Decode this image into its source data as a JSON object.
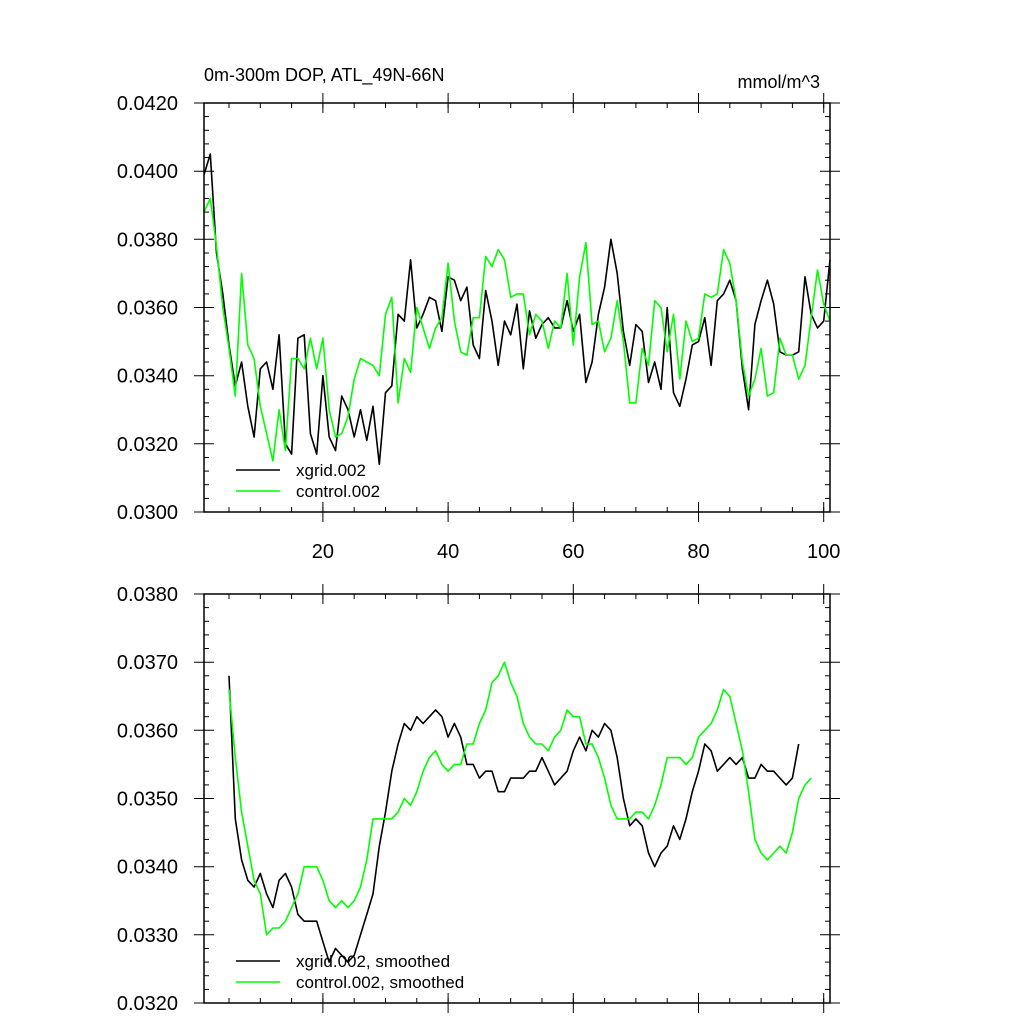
{
  "chart_data": [
    {
      "type": "line",
      "title": "0m-300m DOP, ATL_49N-66N",
      "units": "mmol/m^3",
      "xlabel": "",
      "ylabel": "",
      "xlim": [
        1,
        101
      ],
      "ylim": [
        0.03,
        0.042
      ],
      "x_ticks": [
        "20",
        "40",
        "60",
        "80",
        "100"
      ],
      "y_ticks": [
        "0.0300",
        "0.0320",
        "0.0340",
        "0.0360",
        "0.0380",
        "0.0400",
        "0.0420"
      ],
      "legend_position": "bottom-left",
      "x_start": 1,
      "series": [
        {
          "name": "xgrid.002",
          "color": "#000000",
          "values": [
            0.0399,
            0.0405,
            0.0376,
            0.0364,
            0.0349,
            0.0337,
            0.0344,
            0.0331,
            0.0322,
            0.0342,
            0.0344,
            0.0336,
            0.0352,
            0.032,
            0.0317,
            0.0351,
            0.0352,
            0.0323,
            0.0317,
            0.034,
            0.0322,
            0.0318,
            0.0334,
            0.033,
            0.0322,
            0.033,
            0.0321,
            0.0331,
            0.0314,
            0.0335,
            0.0337,
            0.0358,
            0.0356,
            0.0374,
            0.0354,
            0.0358,
            0.0363,
            0.0362,
            0.0353,
            0.0369,
            0.0368,
            0.0362,
            0.0366,
            0.0349,
            0.0345,
            0.0365,
            0.0356,
            0.0343,
            0.0356,
            0.0352,
            0.0361,
            0.0342,
            0.0359,
            0.0351,
            0.0355,
            0.0357,
            0.0354,
            0.0354,
            0.0362,
            0.0353,
            0.0358,
            0.0338,
            0.0344,
            0.0358,
            0.0366,
            0.038,
            0.037,
            0.0353,
            0.0343,
            0.0355,
            0.0353,
            0.0338,
            0.0344,
            0.0336,
            0.036,
            0.0335,
            0.0331,
            0.0339,
            0.0349,
            0.035,
            0.0357,
            0.0343,
            0.0362,
            0.0364,
            0.0368,
            0.0362,
            0.0342,
            0.033,
            0.0355,
            0.0362,
            0.0368,
            0.0361,
            0.0347,
            0.0346,
            0.0346,
            0.0347,
            0.0369,
            0.0358,
            0.0354,
            0.0356,
            0.0374
          ]
        },
        {
          "name": "control.002",
          "color": "#00ff00",
          "values": [
            0.0388,
            0.0392,
            0.0378,
            0.036,
            0.0348,
            0.0334,
            0.037,
            0.0349,
            0.0345,
            0.0331,
            0.0323,
            0.0315,
            0.033,
            0.0318,
            0.0345,
            0.0345,
            0.0342,
            0.0351,
            0.0342,
            0.0351,
            0.033,
            0.0322,
            0.0323,
            0.0328,
            0.0339,
            0.0345,
            0.0344,
            0.0343,
            0.034,
            0.0358,
            0.0363,
            0.0332,
            0.0345,
            0.0341,
            0.036,
            0.0354,
            0.0348,
            0.0354,
            0.0357,
            0.0373,
            0.0356,
            0.0347,
            0.0346,
            0.0357,
            0.0357,
            0.0375,
            0.0372,
            0.0377,
            0.0374,
            0.0363,
            0.0364,
            0.0364,
            0.0352,
            0.0358,
            0.0356,
            0.0348,
            0.0356,
            0.0354,
            0.037,
            0.0349,
            0.0369,
            0.0379,
            0.0355,
            0.0356,
            0.0347,
            0.0351,
            0.0362,
            0.035,
            0.0332,
            0.0332,
            0.0348,
            0.0343,
            0.0362,
            0.036,
            0.0347,
            0.0358,
            0.0339,
            0.0356,
            0.035,
            0.0351,
            0.0364,
            0.0363,
            0.0364,
            0.0377,
            0.0373,
            0.0362,
            0.0344,
            0.0334,
            0.0339,
            0.0348,
            0.0334,
            0.0335,
            0.0351,
            0.0346,
            0.0346,
            0.0339,
            0.0343,
            0.0357,
            0.0371,
            0.0361,
            0.0356
          ]
        }
      ]
    },
    {
      "type": "line",
      "title": "",
      "xlabel": "",
      "ylabel": "",
      "xlim": [
        1,
        101
      ],
      "ylim": [
        0.032,
        0.038
      ],
      "x_ticks": [],
      "y_ticks": [
        "0.0320",
        "0.0330",
        "0.0340",
        "0.0350",
        "0.0360",
        "0.0370",
        "0.0380"
      ],
      "legend_position": "bottom-left",
      "x_start": 5,
      "series": [
        {
          "name": "xgrid.002, smoothed",
          "color": "#000000",
          "values": [
            0.0368,
            0.0347,
            0.0341,
            0.0338,
            0.0337,
            0.0339,
            0.0336,
            0.0334,
            0.0338,
            0.0339,
            0.0337,
            0.0333,
            0.0332,
            0.0332,
            0.0332,
            0.0329,
            0.0326,
            0.0328,
            0.0327,
            0.0326,
            0.0327,
            0.033,
            0.0333,
            0.0336,
            0.0343,
            0.0348,
            0.0354,
            0.0358,
            0.0361,
            0.036,
            0.0362,
            0.0361,
            0.0362,
            0.0363,
            0.0362,
            0.0359,
            0.0361,
            0.0359,
            0.0355,
            0.0355,
            0.0353,
            0.0354,
            0.0354,
            0.0351,
            0.0351,
            0.0353,
            0.0353,
            0.0353,
            0.0354,
            0.0354,
            0.0356,
            0.0354,
            0.0352,
            0.0353,
            0.0354,
            0.0357,
            0.0359,
            0.0357,
            0.036,
            0.0359,
            0.0361,
            0.036,
            0.0356,
            0.035,
            0.0346,
            0.0347,
            0.0346,
            0.0342,
            0.034,
            0.0342,
            0.0343,
            0.0346,
            0.0344,
            0.0347,
            0.0351,
            0.0354,
            0.0358,
            0.0357,
            0.0354,
            0.0355,
            0.0356,
            0.0355,
            0.0356,
            0.0353,
            0.0353,
            0.0355,
            0.0354,
            0.0354,
            0.0353,
            0.0352,
            0.0353,
            0.0358
          ]
        },
        {
          "name": "control.002, smoothed",
          "color": "#00ff00",
          "values": [
            0.0366,
            0.0356,
            0.0348,
            0.0343,
            0.0338,
            0.0336,
            0.033,
            0.0331,
            0.0331,
            0.0332,
            0.0334,
            0.0336,
            0.034,
            0.034,
            0.034,
            0.0338,
            0.0335,
            0.0334,
            0.0335,
            0.0334,
            0.0335,
            0.0337,
            0.0341,
            0.0347,
            0.0347,
            0.0347,
            0.0347,
            0.0348,
            0.035,
            0.0349,
            0.0351,
            0.0354,
            0.0356,
            0.0357,
            0.0355,
            0.0354,
            0.0355,
            0.0355,
            0.0358,
            0.0358,
            0.0361,
            0.0363,
            0.0367,
            0.0368,
            0.037,
            0.0367,
            0.0365,
            0.0361,
            0.0359,
            0.0358,
            0.0358,
            0.0357,
            0.0359,
            0.036,
            0.0363,
            0.0362,
            0.0362,
            0.0358,
            0.0358,
            0.0356,
            0.0353,
            0.0349,
            0.0347,
            0.0347,
            0.0347,
            0.0348,
            0.0348,
            0.0347,
            0.0349,
            0.0352,
            0.0356,
            0.0356,
            0.0356,
            0.0355,
            0.0356,
            0.0359,
            0.036,
            0.0361,
            0.0363,
            0.0366,
            0.0365,
            0.0361,
            0.0357,
            0.0351,
            0.0344,
            0.0342,
            0.0341,
            0.0342,
            0.0343,
            0.0342,
            0.0345,
            0.035,
            0.0352,
            0.0353
          ]
        }
      ]
    }
  ]
}
